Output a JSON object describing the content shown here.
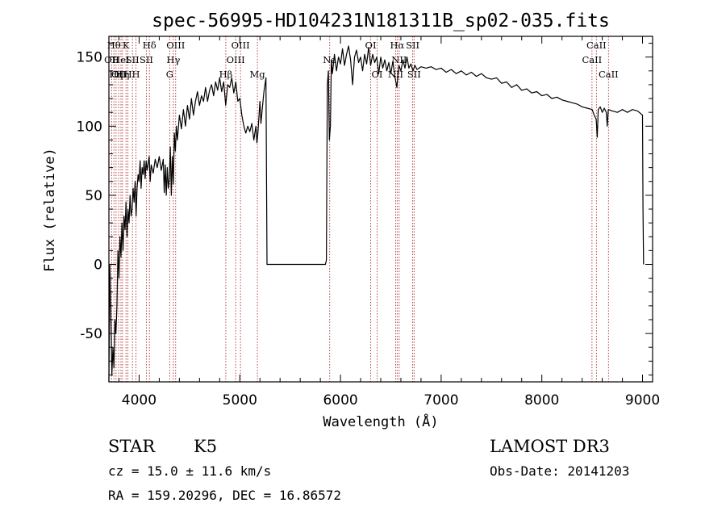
{
  "chart_data": {
    "type": "line",
    "title": "spec-56995-HD104231N181311B_sp02-035.fits",
    "xlabel": "Wavelength (Å)",
    "ylabel": "Flux (relative)",
    "xlim": [
      3700,
      9100
    ],
    "ylim": [
      -85,
      165
    ],
    "xticks": [
      4000,
      5000,
      6000,
      7000,
      8000,
      9000
    ],
    "yticks": [
      -50,
      0,
      50,
      100,
      150
    ],
    "grid": false,
    "series": [
      {
        "points": [
          [
            3700,
            -85
          ],
          [
            3710,
            0
          ],
          [
            3720,
            -40
          ],
          [
            3730,
            -80
          ],
          [
            3740,
            -60
          ],
          [
            3750,
            -75
          ],
          [
            3760,
            -40
          ],
          [
            3770,
            -50
          ],
          [
            3780,
            -30
          ],
          [
            3790,
            10
          ],
          [
            3800,
            -10
          ],
          [
            3810,
            20
          ],
          [
            3820,
            5
          ],
          [
            3830,
            30
          ],
          [
            3840,
            10
          ],
          [
            3850,
            35
          ],
          [
            3860,
            25
          ],
          [
            3870,
            45
          ],
          [
            3880,
            20
          ],
          [
            3890,
            40
          ],
          [
            3900,
            30
          ],
          [
            3910,
            50
          ],
          [
            3920,
            35
          ],
          [
            3930,
            40
          ],
          [
            3940,
            55
          ],
          [
            3950,
            45
          ],
          [
            3960,
            60
          ],
          [
            3970,
            35
          ],
          [
            3980,
            55
          ],
          [
            3990,
            65
          ],
          [
            4000,
            60
          ],
          [
            4010,
            75
          ],
          [
            4020,
            55
          ],
          [
            4030,
            70
          ],
          [
            4040,
            65
          ],
          [
            4050,
            75
          ],
          [
            4060,
            62
          ],
          [
            4070,
            75
          ],
          [
            4080,
            68
          ],
          [
            4100,
            78
          ],
          [
            4110,
            60
          ],
          [
            4120,
            72
          ],
          [
            4140,
            66
          ],
          [
            4160,
            76
          ],
          [
            4180,
            70
          ],
          [
            4200,
            78
          ],
          [
            4220,
            68
          ],
          [
            4240,
            76
          ],
          [
            4250,
            52
          ],
          [
            4260,
            72
          ],
          [
            4270,
            50
          ],
          [
            4280,
            70
          ],
          [
            4290,
            55
          ],
          [
            4300,
            62
          ],
          [
            4310,
            85
          ],
          [
            4320,
            50
          ],
          [
            4330,
            78
          ],
          [
            4340,
            58
          ],
          [
            4350,
            95
          ],
          [
            4360,
            82
          ],
          [
            4370,
            100
          ],
          [
            4380,
            90
          ],
          [
            4400,
            108
          ],
          [
            4420,
            98
          ],
          [
            4440,
            112
          ],
          [
            4460,
            100
          ],
          [
            4480,
            115
          ],
          [
            4500,
            105
          ],
          [
            4520,
            120
          ],
          [
            4540,
            108
          ],
          [
            4560,
            118
          ],
          [
            4580,
            125
          ],
          [
            4600,
            115
          ],
          [
            4620,
            122
          ],
          [
            4640,
            118
          ],
          [
            4660,
            128
          ],
          [
            4680,
            118
          ],
          [
            4700,
            126
          ],
          [
            4720,
            130
          ],
          [
            4740,
            122
          ],
          [
            4760,
            132
          ],
          [
            4780,
            126
          ],
          [
            4800,
            135
          ],
          [
            4820,
            125
          ],
          [
            4840,
            132
          ],
          [
            4860,
            115
          ],
          [
            4880,
            130
          ],
          [
            4900,
            128
          ],
          [
            4920,
            135
          ],
          [
            4940,
            124
          ],
          [
            4960,
            132
          ],
          [
            4980,
            118
          ],
          [
            5000,
            120
          ],
          [
            5020,
            108
          ],
          [
            5040,
            100
          ],
          [
            5060,
            95
          ],
          [
            5080,
            100
          ],
          [
            5100,
            96
          ],
          [
            5120,
            102
          ],
          [
            5140,
            90
          ],
          [
            5160,
            100
          ],
          [
            5170,
            88
          ],
          [
            5180,
            95
          ],
          [
            5200,
            118
          ],
          [
            5210,
            102
          ],
          [
            5220,
            110
          ],
          [
            5240,
            125
          ],
          [
            5260,
            135
          ],
          [
            5270,
            0
          ],
          [
            5300,
            0
          ],
          [
            5500,
            0
          ],
          [
            5700,
            0
          ],
          [
            5850,
            0
          ],
          [
            5860,
            3
          ],
          [
            5870,
            130
          ],
          [
            5880,
            140
          ],
          [
            5890,
            90
          ],
          [
            5900,
            100
          ],
          [
            5910,
            148
          ],
          [
            5920,
            138
          ],
          [
            5940,
            152
          ],
          [
            5960,
            140
          ],
          [
            5980,
            150
          ],
          [
            6000,
            145
          ],
          [
            6020,
            156
          ],
          [
            6040,
            144
          ],
          [
            6060,
            152
          ],
          [
            6080,
            158
          ],
          [
            6100,
            148
          ],
          [
            6120,
            130
          ],
          [
            6140,
            150
          ],
          [
            6160,
            155
          ],
          [
            6180,
            146
          ],
          [
            6200,
            150
          ],
          [
            6220,
            140
          ],
          [
            6240,
            152
          ],
          [
            6260,
            145
          ],
          [
            6280,
            157
          ],
          [
            6300,
            144
          ],
          [
            6320,
            152
          ],
          [
            6340,
            146
          ],
          [
            6360,
            150
          ],
          [
            6380,
            138
          ],
          [
            6400,
            150
          ],
          [
            6420,
            142
          ],
          [
            6440,
            148
          ],
          [
            6460,
            140
          ],
          [
            6480,
            146
          ],
          [
            6500,
            138
          ],
          [
            6520,
            147
          ],
          [
            6540,
            136
          ],
          [
            6560,
            128
          ],
          [
            6580,
            144
          ],
          [
            6600,
            140
          ],
          [
            6620,
            148
          ],
          [
            6640,
            142
          ],
          [
            6660,
            150
          ],
          [
            6680,
            142
          ],
          [
            6700,
            145
          ],
          [
            6720,
            140
          ],
          [
            6740,
            144
          ],
          [
            6760,
            141
          ],
          [
            6800,
            143
          ],
          [
            6850,
            142
          ],
          [
            6900,
            143
          ],
          [
            6950,
            141
          ],
          [
            7000,
            142
          ],
          [
            7050,
            139
          ],
          [
            7100,
            141
          ],
          [
            7150,
            138
          ],
          [
            7200,
            140
          ],
          [
            7250,
            137
          ],
          [
            7300,
            139
          ],
          [
            7350,
            136
          ],
          [
            7400,
            138
          ],
          [
            7450,
            135
          ],
          [
            7500,
            134
          ],
          [
            7550,
            135
          ],
          [
            7600,
            131
          ],
          [
            7650,
            132
          ],
          [
            7700,
            128
          ],
          [
            7750,
            130
          ],
          [
            7800,
            126
          ],
          [
            7850,
            127
          ],
          [
            7900,
            124
          ],
          [
            7950,
            125
          ],
          [
            8000,
            122
          ],
          [
            8050,
            123
          ],
          [
            8100,
            120
          ],
          [
            8150,
            121
          ],
          [
            8200,
            119
          ],
          [
            8250,
            118
          ],
          [
            8300,
            117
          ],
          [
            8350,
            116
          ],
          [
            8400,
            114
          ],
          [
            8450,
            113
          ],
          [
            8500,
            112
          ],
          [
            8520,
            108
          ],
          [
            8540,
            105
          ],
          [
            8550,
            92
          ],
          [
            8560,
            112
          ],
          [
            8580,
            114
          ],
          [
            8600,
            110
          ],
          [
            8620,
            113
          ],
          [
            8640,
            110
          ],
          [
            8650,
            100
          ],
          [
            8660,
            112
          ],
          [
            8700,
            111
          ],
          [
            8750,
            110
          ],
          [
            8800,
            112
          ],
          [
            8850,
            110
          ],
          [
            8900,
            112
          ],
          [
            8950,
            111
          ],
          [
            9000,
            108
          ],
          [
            9005,
            40
          ],
          [
            9010,
            0
          ]
        ]
      }
    ],
    "line_markers": [
      {
        "w": 3727,
        "label": "OII",
        "row": 1
      },
      {
        "w": 3750,
        "label": "Hθ",
        "row": 0
      },
      {
        "w": 3771,
        "label": "Hη",
        "row": 2
      },
      {
        "w": 3797,
        "label": "OII",
        "row": 2
      },
      {
        "w": 3820,
        "label": "HeI",
        "row": 1
      },
      {
        "w": 3835,
        "label": "Hη",
        "row": 2
      },
      {
        "w": 3870,
        "label": "K",
        "row": 0
      },
      {
        "w": 3889,
        "label": "H",
        "row": 2
      },
      {
        "w": 3934,
        "label": "SII",
        "row": 1
      },
      {
        "w": 3969,
        "label": "H",
        "row": 2
      },
      {
        "w": 4072,
        "label": "SII",
        "row": 1
      },
      {
        "w": 4102,
        "label": "Hδ",
        "row": 0
      },
      {
        "w": 4304,
        "label": "G",
        "row": 2
      },
      {
        "w": 4340,
        "label": "Hγ",
        "row": 1
      },
      {
        "w": 4363,
        "label": "OIII",
        "row": 0
      },
      {
        "w": 4861,
        "label": "Hβ",
        "row": 2
      },
      {
        "w": 4959,
        "label": "OIII",
        "row": 1
      },
      {
        "w": 5007,
        "label": "OIII",
        "row": 0
      },
      {
        "w": 5175,
        "label": "Mg",
        "row": 2
      },
      {
        "w": 5893,
        "label": "Na",
        "row": 1
      },
      {
        "w": 6300,
        "label": "OI",
        "row": 0
      },
      {
        "w": 6364,
        "label": "OI",
        "row": 2
      },
      {
        "w": 6548,
        "label": "NII",
        "row": 2
      },
      {
        "w": 6563,
        "label": "Hα",
        "row": 0
      },
      {
        "w": 6583,
        "label": "NII",
        "row": 1
      },
      {
        "w": 6717,
        "label": "SII",
        "row": 0
      },
      {
        "w": 6731,
        "label": "SII",
        "row": 2
      },
      {
        "w": 8498,
        "label": "CaII",
        "row": 1
      },
      {
        "w": 8542,
        "label": "CaII",
        "row": 0
      },
      {
        "w": 8662,
        "label": "CaII",
        "row": 2
      }
    ]
  },
  "info": {
    "object_class": "STAR",
    "subclass": "K5",
    "survey": "LAMOST DR3",
    "cz": "cz = 15.0 ± 11.6 km/s",
    "obs_date": "Obs-Date: 20141203",
    "coords": "RA = 159.20296, DEC =  16.86572"
  }
}
